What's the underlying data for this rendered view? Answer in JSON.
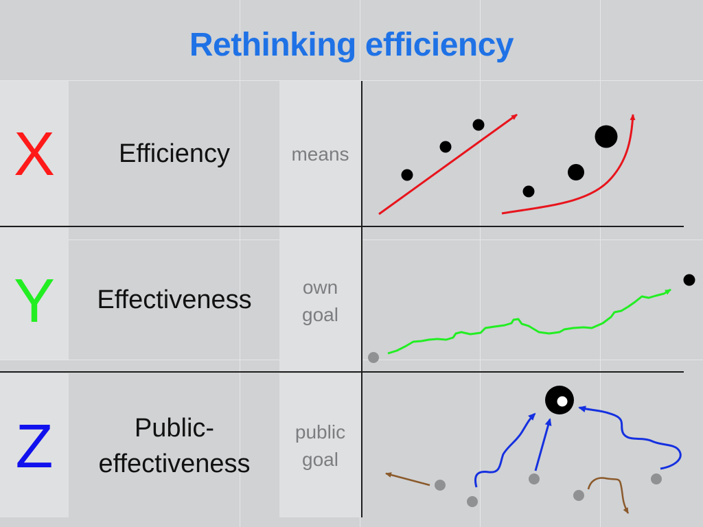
{
  "title": "Rethinking efficiency",
  "rows": [
    {
      "letter": "X",
      "letter_color": "#ff1a1a",
      "concept": "Efficiency",
      "sublabel": "means"
    },
    {
      "letter": "Y",
      "letter_color": "#22ee22",
      "concept": "Effectiveness",
      "sublabel": "own\ngoal"
    },
    {
      "letter": "Z",
      "letter_color": "#1111ee",
      "concept": "Public-\neffectiveness",
      "sublabel": "public\ngoal"
    }
  ],
  "colors": {
    "title": "#1f72e6",
    "arrow_red": "#e8141c",
    "path_green": "#22ee22",
    "arrow_blue": "#1530e0",
    "arrow_brown": "#8b5a2b",
    "dot_black": "#000000",
    "dot_grey": "#8f9193"
  }
}
